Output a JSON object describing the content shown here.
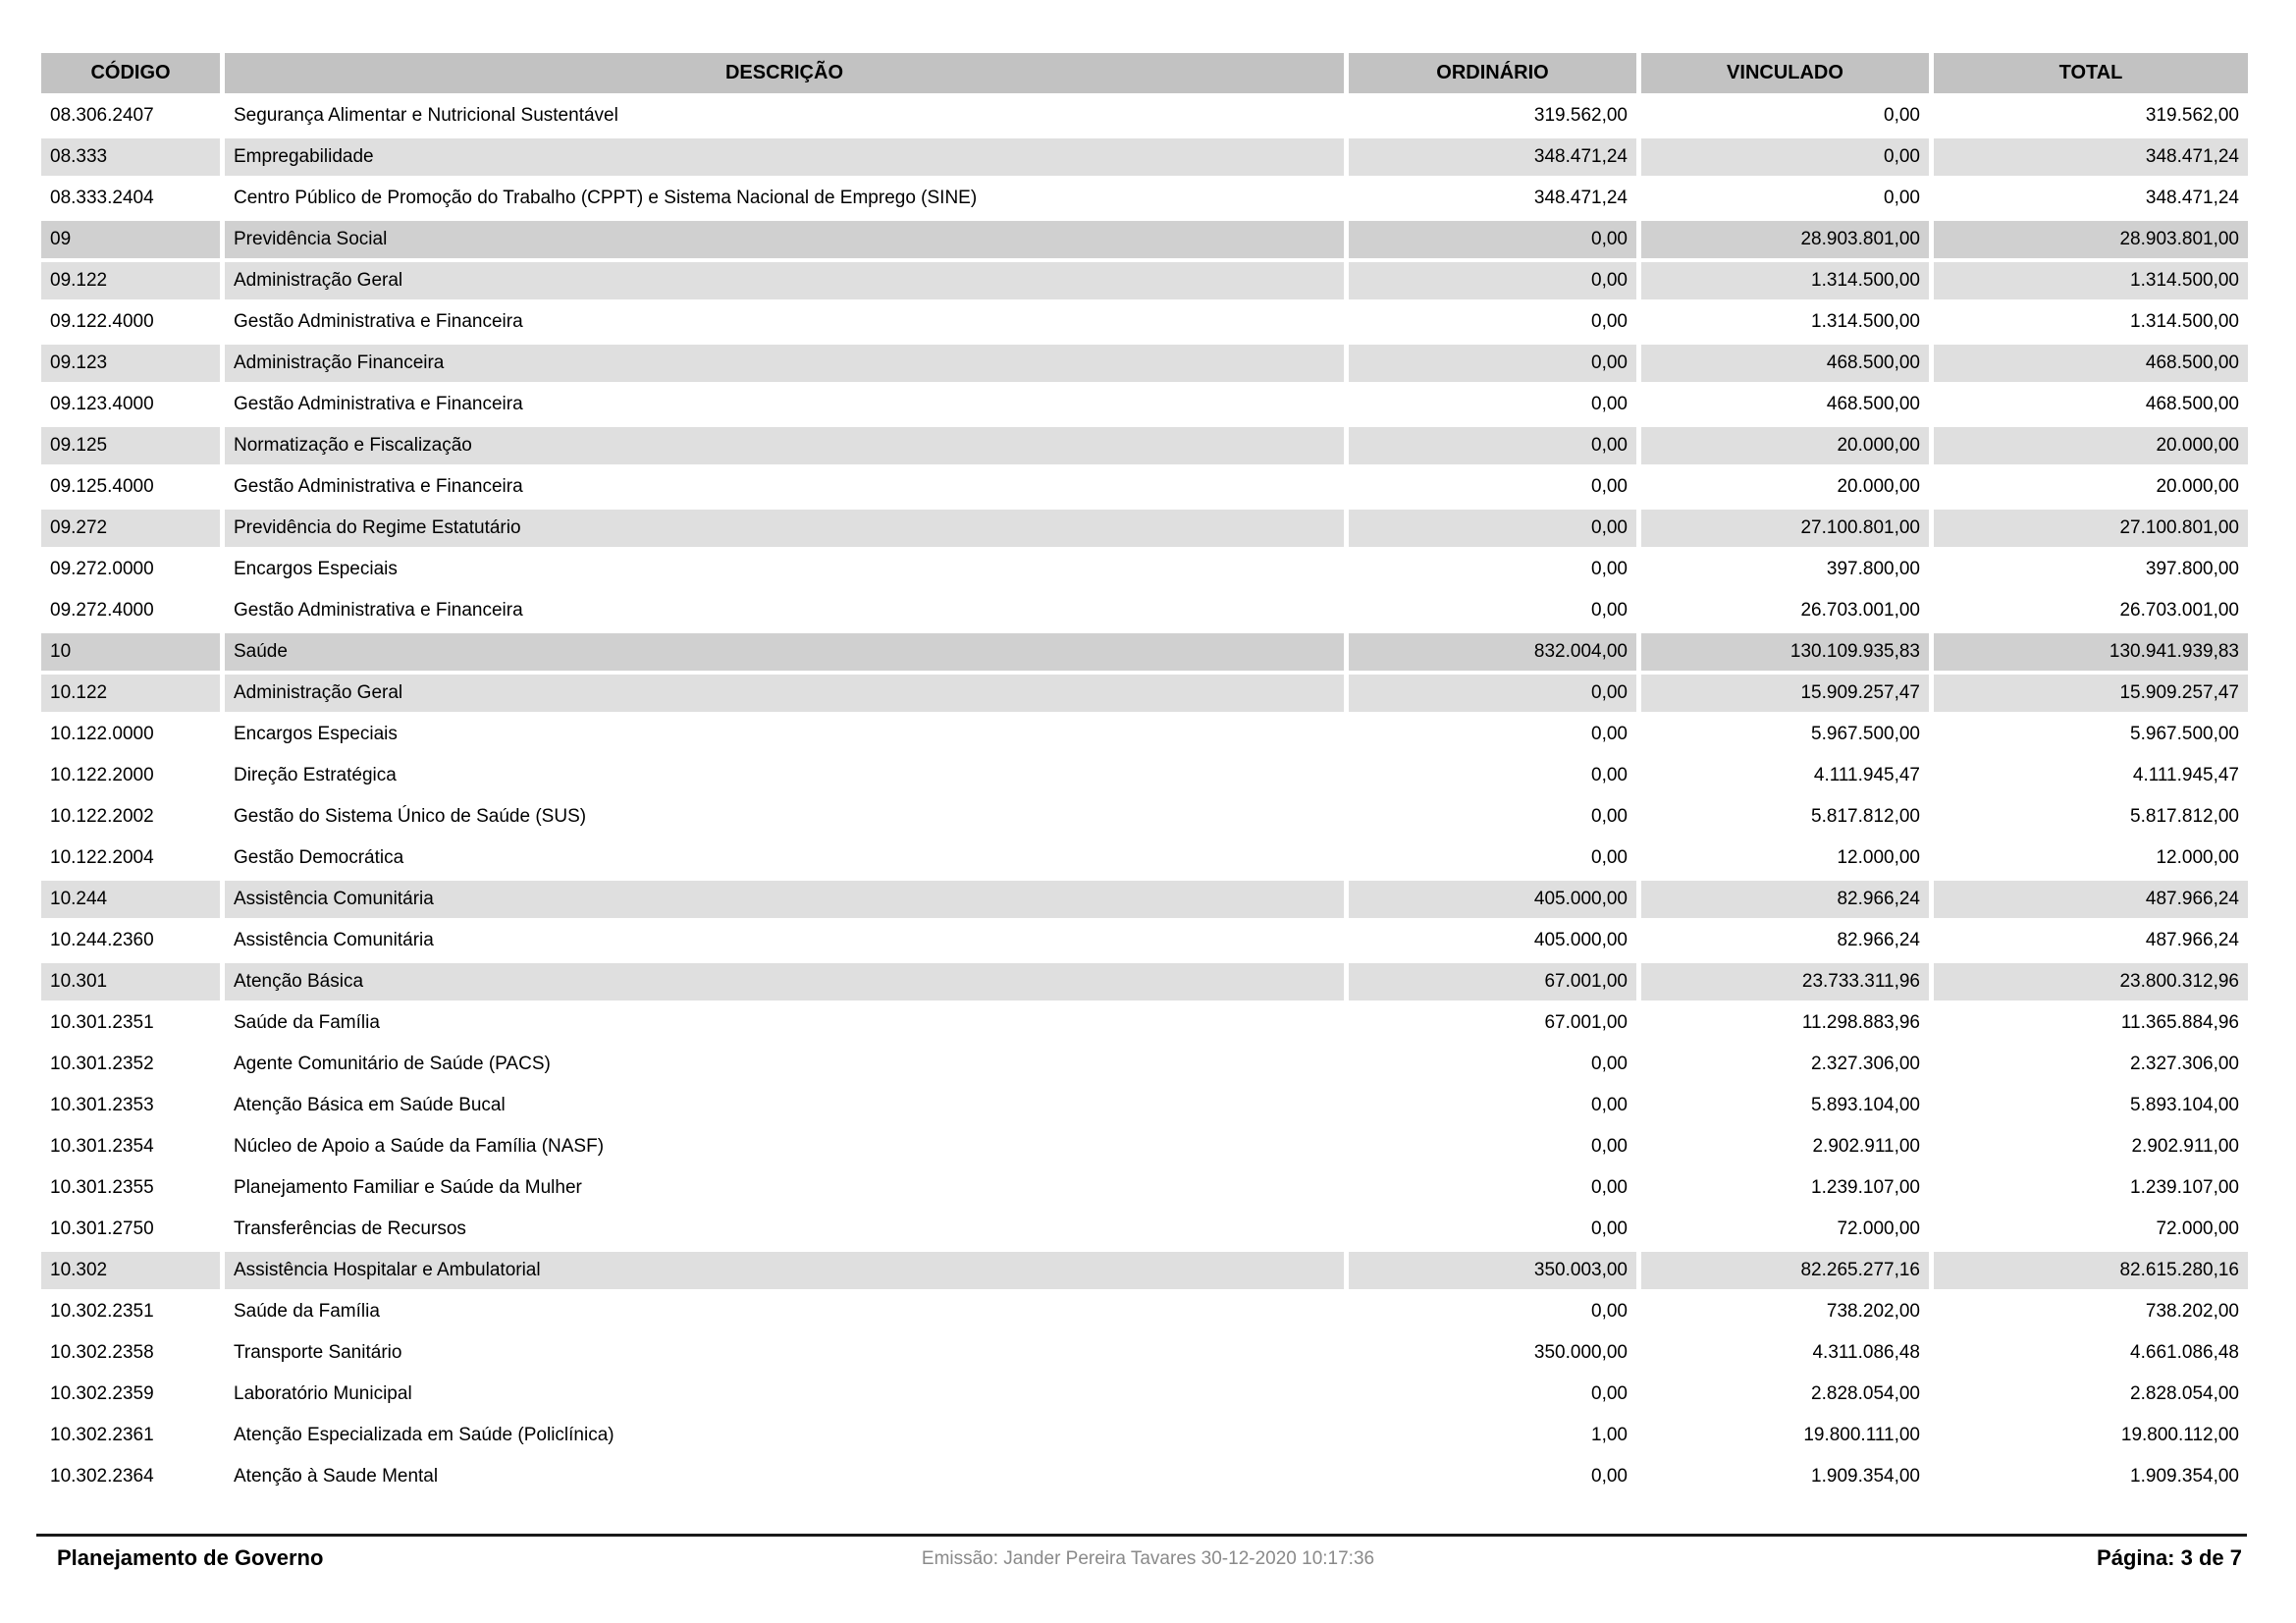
{
  "table": {
    "columns": [
      "CÓDIGO",
      "DESCRIÇÃO",
      "ORDINÁRIO",
      "VINCULADO",
      "TOTAL"
    ],
    "rows": [
      {
        "codigo": "08.306.2407",
        "descricao": "Segurança Alimentar e Nutricional Sustentável",
        "ordinario": "319.562,00",
        "vinculado": "0,00",
        "total": "319.562,00"
      },
      {
        "codigo": "08.333",
        "descricao": "Empregabilidade",
        "ordinario": "348.471,24",
        "vinculado": "0,00",
        "total": "348.471,24"
      },
      {
        "codigo": "08.333.2404",
        "descricao": "Centro Público de Promoção do Trabalho (CPPT) e Sistema Nacional de Emprego (SINE)",
        "ordinario": "348.471,24",
        "vinculado": "0,00",
        "total": "348.471,24"
      },
      {
        "codigo": "09",
        "descricao": "Previdência Social",
        "ordinario": "0,00",
        "vinculado": "28.903.801,00",
        "total": "28.903.801,00"
      },
      {
        "codigo": "09.122",
        "descricao": "Administração Geral",
        "ordinario": "0,00",
        "vinculado": "1.314.500,00",
        "total": "1.314.500,00"
      },
      {
        "codigo": "09.122.4000",
        "descricao": "Gestão Administrativa e Financeira",
        "ordinario": "0,00",
        "vinculado": "1.314.500,00",
        "total": "1.314.500,00"
      },
      {
        "codigo": "09.123",
        "descricao": "Administração Financeira",
        "ordinario": "0,00",
        "vinculado": "468.500,00",
        "total": "468.500,00"
      },
      {
        "codigo": "09.123.4000",
        "descricao": "Gestão Administrativa e Financeira",
        "ordinario": "0,00",
        "vinculado": "468.500,00",
        "total": "468.500,00"
      },
      {
        "codigo": "09.125",
        "descricao": "Normatização e Fiscalização",
        "ordinario": "0,00",
        "vinculado": "20.000,00",
        "total": "20.000,00"
      },
      {
        "codigo": "09.125.4000",
        "descricao": "Gestão Administrativa e Financeira",
        "ordinario": "0,00",
        "vinculado": "20.000,00",
        "total": "20.000,00"
      },
      {
        "codigo": "09.272",
        "descricao": "Previdência do Regime Estatutário",
        "ordinario": "0,00",
        "vinculado": "27.100.801,00",
        "total": "27.100.801,00"
      },
      {
        "codigo": "09.272.0000",
        "descricao": "Encargos Especiais",
        "ordinario": "0,00",
        "vinculado": "397.800,00",
        "total": "397.800,00"
      },
      {
        "codigo": "09.272.4000",
        "descricao": "Gestão Administrativa e Financeira",
        "ordinario": "0,00",
        "vinculado": "26.703.001,00",
        "total": "26.703.001,00"
      },
      {
        "codigo": "10",
        "descricao": "Saúde",
        "ordinario": "832.004,00",
        "vinculado": "130.109.935,83",
        "total": "130.941.939,83"
      },
      {
        "codigo": "10.122",
        "descricao": "Administração Geral",
        "ordinario": "0,00",
        "vinculado": "15.909.257,47",
        "total": "15.909.257,47"
      },
      {
        "codigo": "10.122.0000",
        "descricao": "Encargos Especiais",
        "ordinario": "0,00",
        "vinculado": "5.967.500,00",
        "total": "5.967.500,00"
      },
      {
        "codigo": "10.122.2000",
        "descricao": "Direção Estratégica",
        "ordinario": "0,00",
        "vinculado": "4.111.945,47",
        "total": "4.111.945,47"
      },
      {
        "codigo": "10.122.2002",
        "descricao": "Gestão do Sistema Único de Saúde (SUS)",
        "ordinario": "0,00",
        "vinculado": "5.817.812,00",
        "total": "5.817.812,00"
      },
      {
        "codigo": "10.122.2004",
        "descricao": "Gestão Democrática",
        "ordinario": "0,00",
        "vinculado": "12.000,00",
        "total": "12.000,00"
      },
      {
        "codigo": "10.244",
        "descricao": "Assistência Comunitária",
        "ordinario": "405.000,00",
        "vinculado": "82.966,24",
        "total": "487.966,24"
      },
      {
        "codigo": "10.244.2360",
        "descricao": "Assistência Comunitária",
        "ordinario": "405.000,00",
        "vinculado": "82.966,24",
        "total": "487.966,24"
      },
      {
        "codigo": "10.301",
        "descricao": "Atenção Básica",
        "ordinario": "67.001,00",
        "vinculado": "23.733.311,96",
        "total": "23.800.312,96"
      },
      {
        "codigo": "10.301.2351",
        "descricao": "Saúde da Família",
        "ordinario": "67.001,00",
        "vinculado": "11.298.883,96",
        "total": "11.365.884,96"
      },
      {
        "codigo": "10.301.2352",
        "descricao": "Agente Comunitário de Saúde (PACS)",
        "ordinario": "0,00",
        "vinculado": "2.327.306,00",
        "total": "2.327.306,00"
      },
      {
        "codigo": "10.301.2353",
        "descricao": "Atenção Básica em Saúde Bucal",
        "ordinario": "0,00",
        "vinculado": "5.893.104,00",
        "total": "5.893.104,00"
      },
      {
        "codigo": "10.301.2354",
        "descricao": "Núcleo de Apoio a Saúde da Família (NASF)",
        "ordinario": "0,00",
        "vinculado": "2.902.911,00",
        "total": "2.902.911,00"
      },
      {
        "codigo": "10.301.2355",
        "descricao": "Planejamento Familiar e Saúde da Mulher",
        "ordinario": "0,00",
        "vinculado": "1.239.107,00",
        "total": "1.239.107,00"
      },
      {
        "codigo": "10.301.2750",
        "descricao": "Transferências de Recursos",
        "ordinario": "0,00",
        "vinculado": "72.000,00",
        "total": "72.000,00"
      },
      {
        "codigo": "10.302",
        "descricao": "Assistência Hospitalar e Ambulatorial",
        "ordinario": "350.003,00",
        "vinculado": "82.265.277,16",
        "total": "82.615.280,16"
      },
      {
        "codigo": "10.302.2351",
        "descricao": "Saúde da Família",
        "ordinario": "0,00",
        "vinculado": "738.202,00",
        "total": "738.202,00"
      },
      {
        "codigo": "10.302.2358",
        "descricao": "Transporte Sanitário",
        "ordinario": "350.000,00",
        "vinculado": "4.311.086,48",
        "total": "4.661.086,48"
      },
      {
        "codigo": "10.302.2359",
        "descricao": "Laboratório Municipal",
        "ordinario": "0,00",
        "vinculado": "2.828.054,00",
        "total": "2.828.054,00"
      },
      {
        "codigo": "10.302.2361",
        "descricao": "Atenção Especializada em Saúde (Policlínica)",
        "ordinario": "1,00",
        "vinculado": "19.800.111,00",
        "total": "19.800.112,00"
      },
      {
        "codigo": "10.302.2364",
        "descricao": "Atenção à Saude Mental",
        "ordinario": "0,00",
        "vinculado": "1.909.354,00",
        "total": "1.909.354,00"
      }
    ]
  },
  "footer": {
    "left": "Planejamento de Governo",
    "center": "Emissão: Jander Pereira Tavares 30-12-2020 10:17:36",
    "right": "Página: 3 de 7"
  },
  "colors": {
    "header_bg": "#c2c2c2",
    "section_level1_bg": "#d0d0d0",
    "section_level2_bg": "#dfdfdf",
    "leaf_row_bg": "#ffffff",
    "footer_muted_text": "#8a8a8a"
  }
}
